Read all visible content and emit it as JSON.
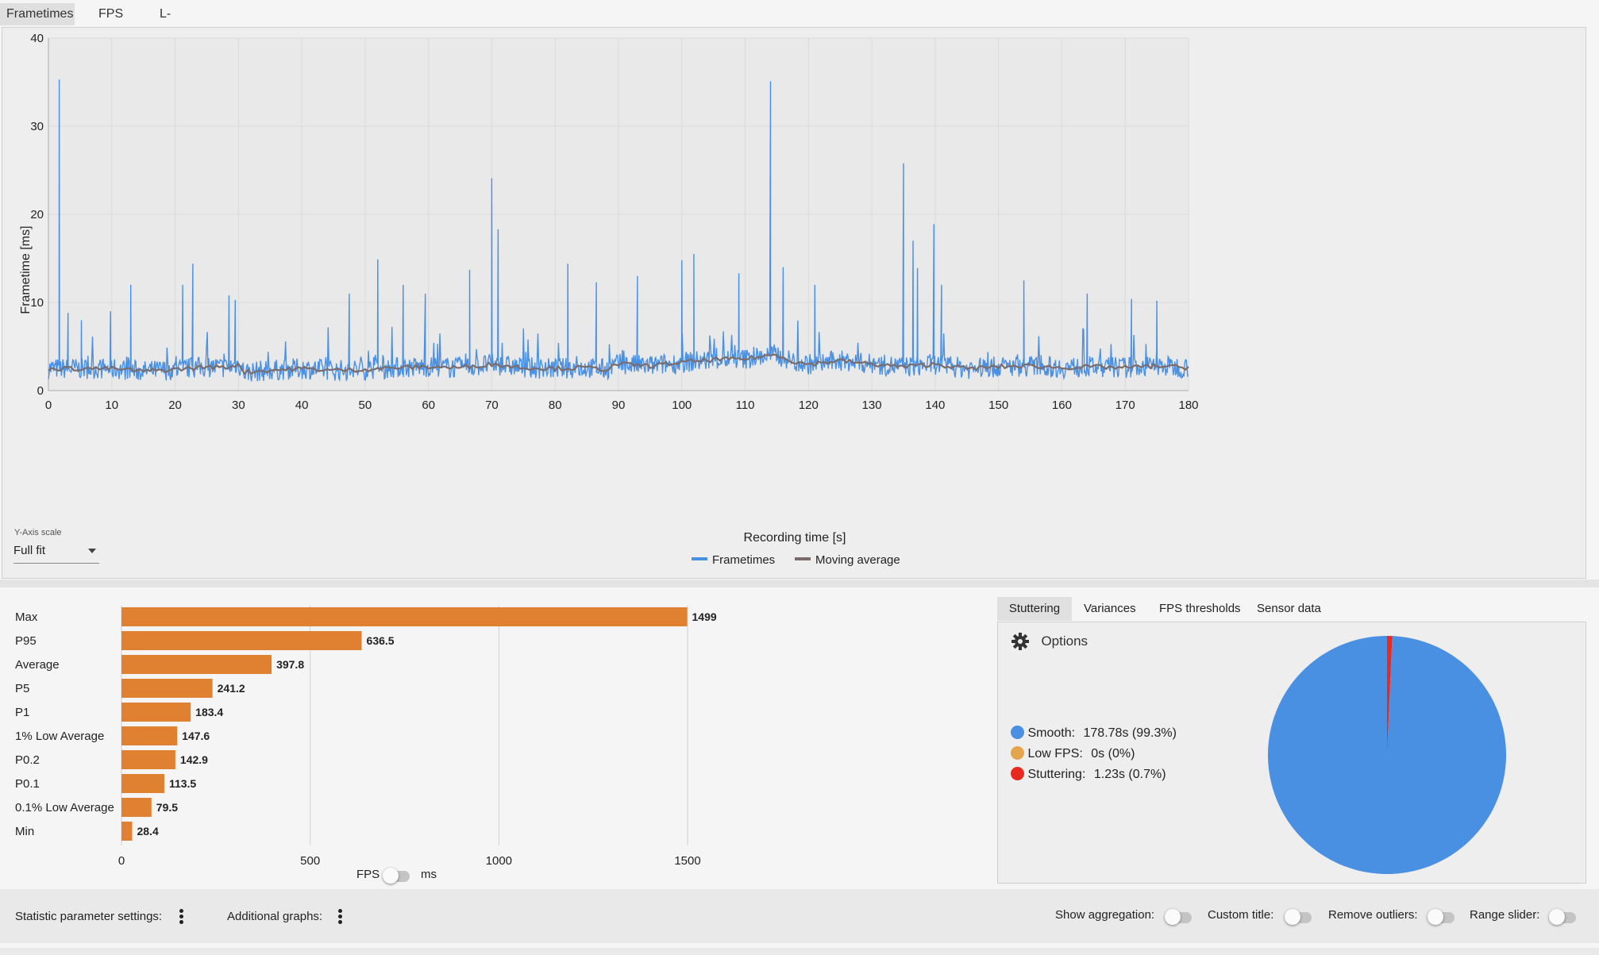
{
  "tabs": [
    "Frametimes",
    "FPS",
    "L-shape"
  ],
  "frametime_chart": {
    "chart_data": {
      "type": "line",
      "xlabel": "Recording time [s]",
      "ylabel": "Frametime [ms]",
      "xlim": [
        0,
        180
      ],
      "ylim": [
        0,
        40
      ],
      "xticks": [
        0,
        10,
        20,
        30,
        40,
        50,
        60,
        70,
        80,
        90,
        100,
        110,
        120,
        130,
        140,
        150,
        160,
        170,
        180
      ],
      "yticks": [
        0,
        10,
        20,
        30,
        40
      ],
      "grid": true,
      "legend_position": "bottom",
      "series": [
        {
          "name": "Frametimes",
          "color": "#4a90e2",
          "baseline_ms": 2.6,
          "peaks": [
            [
              1.7,
              35.3
            ],
            [
              3.1,
              8.8
            ],
            [
              5.2,
              8.0
            ],
            [
              9.8,
              9.0
            ],
            [
              13.0,
              12.0
            ],
            [
              21.2,
              12.0
            ],
            [
              22.8,
              14.4
            ],
            [
              28.5,
              10.8
            ],
            [
              29.5,
              10.3
            ],
            [
              47.5,
              11.0
            ],
            [
              52.0,
              14.9
            ],
            [
              56.0,
              12.0
            ],
            [
              59.5,
              11.0
            ],
            [
              66.5,
              13.7
            ],
            [
              70.0,
              24.1
            ],
            [
              71.0,
              18.3
            ],
            [
              82.0,
              14.4
            ],
            [
              86.5,
              12.3
            ],
            [
              93.0,
              13.0
            ],
            [
              100.0,
              14.8
            ],
            [
              101.9,
              15.5
            ],
            [
              109.0,
              13.3
            ],
            [
              114.0,
              35.1
            ],
            [
              116.0,
              14.0
            ],
            [
              121.0,
              12.0
            ],
            [
              135.0,
              25.8
            ],
            [
              136.5,
              17.0
            ],
            [
              137.2,
              13.9
            ],
            [
              139.8,
              18.9
            ],
            [
              141.0,
              12.0
            ],
            [
              154.0,
              12.5
            ],
            [
              164.0,
              11.0
            ],
            [
              171.0,
              10.4
            ],
            [
              175.0,
              10.2
            ]
          ]
        },
        {
          "name": "Moving average",
          "color": "#7b6c6c",
          "points": [
            [
              0,
              2.5
            ],
            [
              10,
              2.5
            ],
            [
              15,
              2.2
            ],
            [
              20,
              2.4
            ],
            [
              25,
              2.7
            ],
            [
              28,
              2.6
            ],
            [
              30,
              3.0
            ],
            [
              31,
              2.1
            ],
            [
              35,
              2.3
            ],
            [
              40,
              2.5
            ],
            [
              45,
              2.3
            ],
            [
              50,
              2.4
            ],
            [
              55,
              2.6
            ],
            [
              60,
              2.7
            ],
            [
              65,
              2.6
            ],
            [
              70,
              3.0
            ],
            [
              75,
              2.6
            ],
            [
              80,
              2.5
            ],
            [
              85,
              2.6
            ],
            [
              88,
              2.4
            ],
            [
              90,
              3.0
            ],
            [
              95,
              2.8
            ],
            [
              100,
              3.2
            ],
            [
              105,
              3.5
            ],
            [
              110,
              3.6
            ],
            [
              115,
              4.1
            ],
            [
              118,
              3.2
            ],
            [
              120,
              3.0
            ],
            [
              125,
              3.4
            ],
            [
              130,
              3.0
            ],
            [
              135,
              2.7
            ],
            [
              140,
              3.0
            ],
            [
              145,
              2.5
            ],
            [
              150,
              2.7
            ],
            [
              155,
              2.8
            ],
            [
              160,
              2.6
            ],
            [
              165,
              2.7
            ],
            [
              170,
              2.6
            ],
            [
              175,
              2.8
            ],
            [
              180,
              2.6
            ]
          ]
        }
      ]
    },
    "y_axis_scale_label": "Y-Axis scale",
    "y_axis_scale_value": "Full fit"
  },
  "bar_chart": {
    "chart_data": {
      "type": "bar",
      "orientation": "horizontal",
      "categories": [
        "Max",
        "P95",
        "Average",
        "P5",
        "P1",
        "1% Low Average",
        "P0.2",
        "P0.1",
        "0.1% Low Average",
        "Min"
      ],
      "values": [
        1499,
        636.5,
        397.8,
        241.2,
        183.4,
        147.6,
        142.9,
        113.5,
        79.5,
        28.4
      ],
      "value_labels": [
        "1499",
        "636.5",
        "397.8",
        "241.2",
        "183.4",
        "147.6",
        "142.9",
        "113.5",
        "79.5",
        "28.4"
      ],
      "xlim": [
        0,
        1500
      ],
      "xticks": [
        0,
        500,
        1000,
        1500
      ],
      "color": "#e08132",
      "grid": true
    },
    "unit_left": "FPS",
    "unit_right": "ms"
  },
  "right_panel": {
    "tabs": [
      "Stuttering",
      "Variances",
      "FPS thresholds",
      "Sensor data"
    ],
    "options_label": "Options",
    "legend": [
      {
        "label": "Smooth:",
        "value": "178.78s (99.3%)",
        "color": "#4a90e2"
      },
      {
        "label": "Low FPS:",
        "value": "0s (0%)",
        "color": "#e5a54e"
      },
      {
        "label": "Stuttering:",
        "value": "1.23s (0.7%)",
        "color": "#e8291f"
      }
    ],
    "chart_data": {
      "type": "pie",
      "labels": [
        "Smooth",
        "Low FPS",
        "Stuttering"
      ],
      "values": [
        99.3,
        0,
        0.7
      ],
      "colors": [
        "#4a90e2",
        "#e5a54e",
        "#e8291f"
      ]
    }
  },
  "footer": {
    "statistic_settings": "Statistic parameter settings:",
    "additional_graphs": "Additional graphs:",
    "show_aggregation": "Show aggregation:",
    "custom_title": "Custom title:",
    "remove_outliers": "Remove outliers:",
    "range_slider": "Range slider:"
  }
}
